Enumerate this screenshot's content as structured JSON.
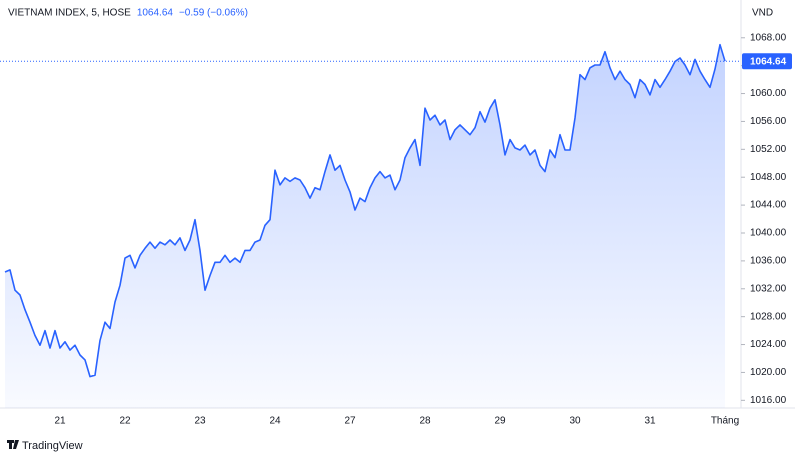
{
  "chart_data": {
    "type": "area",
    "title": "VIETNAM INDEX, 5, HOSE",
    "last_price": 1064.64,
    "change": "−0.59 (−0.06%)",
    "unit": "VND",
    "brand": "TradingView",
    "color": "#2962ff",
    "categories": [
      null,
      null,
      null,
      null,
      null,
      null,
      null,
      null,
      null,
      null,
      null,
      "21",
      null,
      null,
      null,
      null,
      null,
      null,
      null,
      null,
      null,
      null,
      null,
      null,
      "22",
      null,
      null,
      null,
      null,
      null,
      null,
      null,
      null,
      null,
      null,
      null,
      null,
      null,
      null,
      "23",
      null,
      null,
      null,
      null,
      null,
      null,
      null,
      null,
      null,
      null,
      null,
      null,
      null,
      null,
      "24",
      null,
      null,
      null,
      null,
      null,
      null,
      null,
      null,
      null,
      null,
      null,
      null,
      null,
      null,
      "27",
      null,
      null,
      null,
      null,
      null,
      null,
      null,
      null,
      null,
      null,
      null,
      null,
      null,
      null,
      "28",
      null,
      null,
      null,
      null,
      null,
      null,
      null,
      null,
      null,
      null,
      null,
      null,
      null,
      null,
      "29",
      null,
      null,
      null,
      null,
      null,
      null,
      null,
      null,
      null,
      null,
      null,
      null,
      null,
      null,
      "30",
      null,
      null,
      null,
      null,
      null,
      null,
      null,
      null,
      null,
      null,
      null,
      null,
      null,
      null,
      "31",
      null,
      null,
      null,
      null,
      null,
      null,
      null,
      null,
      null,
      null,
      null,
      null,
      null,
      null,
      "Tháng"
    ],
    "values": [
      1034.4,
      1034.7,
      1031.8,
      1031.1,
      1029.0,
      1027.2,
      1025.3,
      1023.9,
      1026.0,
      1023.5,
      1026.0,
      1023.5,
      1024.4,
      1023.2,
      1023.9,
      1022.5,
      1021.8,
      1019.4,
      1019.6,
      1024.6,
      1027.2,
      1026.3,
      1030.1,
      1032.5,
      1036.4,
      1036.8,
      1035.0,
      1036.8,
      1037.8,
      1038.7,
      1037.8,
      1038.7,
      1038.3,
      1039.0,
      1038.3,
      1039.3,
      1037.5,
      1039.0,
      1041.9,
      1037.5,
      1031.8,
      1033.9,
      1035.8,
      1035.8,
      1036.8,
      1035.8,
      1036.4,
      1035.8,
      1037.5,
      1037.5,
      1038.7,
      1039.0,
      1041.1,
      1041.9,
      1049.0,
      1046.9,
      1047.9,
      1047.4,
      1047.9,
      1047.6,
      1046.5,
      1045.0,
      1046.5,
      1046.2,
      1048.8,
      1051.2,
      1049.0,
      1049.7,
      1047.6,
      1045.9,
      1043.3,
      1045.0,
      1044.5,
      1046.5,
      1047.9,
      1048.8,
      1047.9,
      1048.3,
      1046.2,
      1047.6,
      1050.8,
      1052.2,
      1053.4,
      1049.7,
      1057.9,
      1056.2,
      1056.9,
      1055.5,
      1056.2,
      1053.4,
      1054.8,
      1055.5,
      1054.8,
      1054.1,
      1055.1,
      1057.4,
      1055.9,
      1057.9,
      1059.1,
      1055.5,
      1051.2,
      1053.4,
      1052.2,
      1051.9,
      1052.6,
      1051.2,
      1051.9,
      1049.7,
      1048.8,
      1051.9,
      1050.8,
      1054.1,
      1051.9,
      1051.9,
      1056.5,
      1062.7,
      1062.0,
      1063.7,
      1064.1,
      1064.1,
      1066.0,
      1063.7,
      1062.0,
      1063.2,
      1062.0,
      1061.3,
      1059.4,
      1062.0,
      1061.3,
      1059.8,
      1062.0,
      1060.9,
      1062.0,
      1063.2,
      1064.6,
      1065.1,
      1064.1,
      1062.7,
      1064.9,
      1063.2,
      1062.0,
      1060.9,
      1063.5,
      1067.0,
      1064.64
    ],
    "ylim": [
      1014.9,
      1072.7
    ],
    "yticks": [
      {
        "value": 1016,
        "label": "1016.00"
      },
      {
        "value": 1020,
        "label": "1020.00"
      },
      {
        "value": 1024,
        "label": "1024.00"
      },
      {
        "value": 1028,
        "label": "1028.00"
      },
      {
        "value": 1032,
        "label": "1032.00"
      },
      {
        "value": 1036,
        "label": "1036.00"
      },
      {
        "value": 1040,
        "label": "1040.00"
      },
      {
        "value": 1044,
        "label": "1044.00"
      },
      {
        "value": 1048,
        "label": "1048.00"
      },
      {
        "value": 1052,
        "label": "1052.00"
      },
      {
        "value": 1056,
        "label": "1056.00"
      },
      {
        "value": 1060,
        "label": "1060.00"
      },
      {
        "value": 1064,
        "label": "1064.00"
      },
      {
        "value": 1068,
        "label": "1068.00"
      }
    ]
  }
}
